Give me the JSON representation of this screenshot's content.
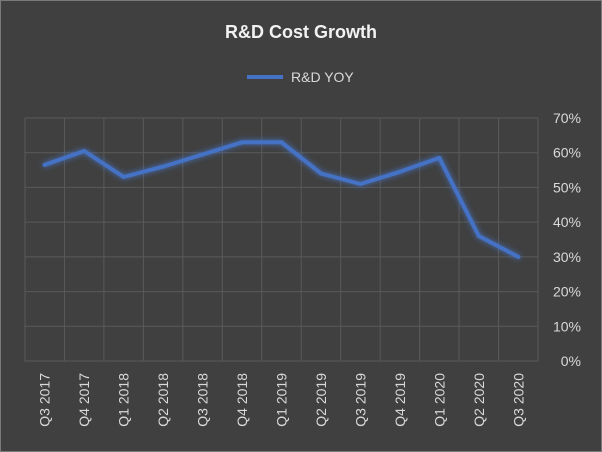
{
  "chart_data": {
    "type": "line",
    "title": "R&D Cost Growth",
    "xlabel": "",
    "ylabel": "",
    "categories": [
      "Q3 2017",
      "Q4 2017",
      "Q1 2018",
      "Q2 2018",
      "Q3 2018",
      "Q4 2018",
      "Q1 2019",
      "Q2 2019",
      "Q3 2019",
      "Q4 2019",
      "Q1 2020",
      "Q2 2020",
      "Q3 2020"
    ],
    "series": [
      {
        "name": "R&D YOY",
        "values": [
          56.5,
          60.5,
          53,
          56,
          59.5,
          63,
          63,
          54,
          51,
          54.5,
          58.5,
          36,
          30
        ]
      }
    ],
    "ylim": [
      0,
      70
    ],
    "yticks": [
      0,
      10,
      20,
      30,
      40,
      50,
      60,
      70
    ],
    "ytick_labels": [
      "0%",
      "10%",
      "20%",
      "30%",
      "40%",
      "50%",
      "60%",
      "70%"
    ],
    "y_axis_side": "right",
    "grid": true,
    "legend_position": "top-center",
    "colors": {
      "background": "#404040",
      "line": "#4472C4",
      "grid": "#5a5a5a",
      "text": "#d9d9d9",
      "title": "#f2f2f2"
    }
  }
}
